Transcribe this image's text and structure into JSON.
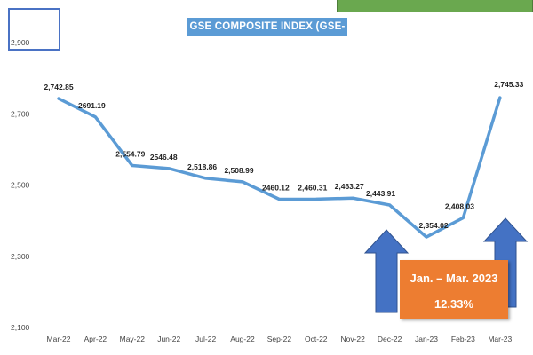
{
  "chart_data": {
    "type": "line",
    "title": "GSE COMPOSITE INDEX  (GSE-CI)",
    "xlabel": "",
    "ylabel": "",
    "categories": [
      "Mar-22",
      "Apr-22",
      "May-22",
      "Jun-22",
      "Jul-22",
      "Aug-22",
      "Sep-22",
      "Oct-22",
      "Nov-22",
      "Dec-22",
      "Jan-23",
      "Feb-23",
      "Mar-23"
    ],
    "series": [
      {
        "name": "GSE-CI",
        "values": [
          2742.85,
          2691.19,
          2554.79,
          2546.48,
          2518.86,
          2508.99,
          2460.12,
          2460.31,
          2463.27,
          2443.91,
          2354.02,
          2408.03,
          2745.33
        ],
        "labels": [
          "2,742.85",
          "2691.19",
          "2,554.79",
          "2546.48",
          "2,518.86",
          "2,508.99",
          "2460.12",
          "2,460.31",
          "2,463.27",
          "2,443.91",
          "2,354.02",
          "2,408.03",
          "2,745.33"
        ]
      }
    ],
    "yticks": [
      2100,
      2300,
      2500,
      2700,
      2900
    ],
    "ytick_labels": [
      "2,100",
      "2,300",
      "2,500",
      "2,700",
      "2,900"
    ],
    "ylim": [
      2100,
      2900
    ],
    "grid": false,
    "line_color": "#5b9bd5",
    "annotation": {
      "period": "Jan. – Mar. 2023",
      "change": "12.33%",
      "box_color": "#ed7d31",
      "arrow_color": "#4472c4"
    }
  }
}
